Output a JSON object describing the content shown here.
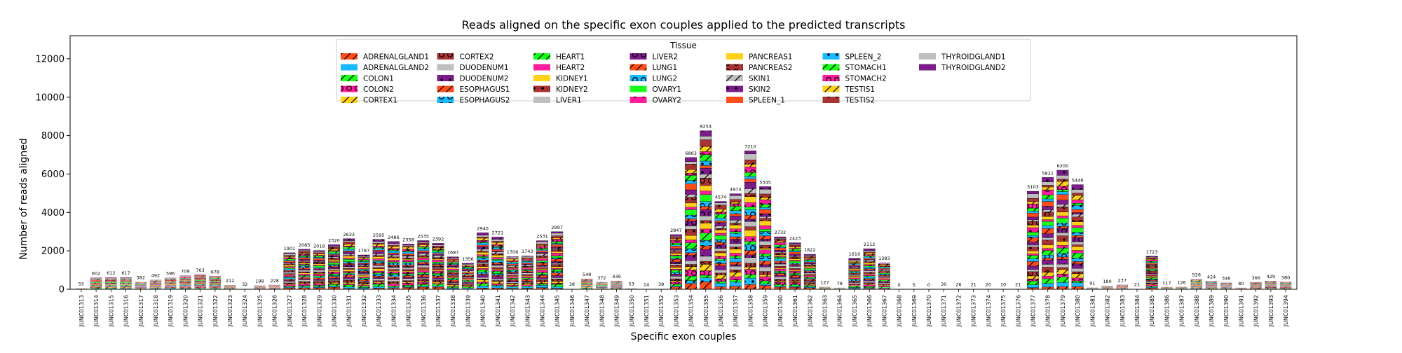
{
  "chart_data": {
    "type": "bar",
    "stacked": true,
    "title": "Reads aligned on the specific exon couples applied to the predicted transcripts",
    "xlabel": "Specific exon couples",
    "ylabel": "Number of reads aligned",
    "ylim": [
      0,
      13200
    ],
    "yticks": [
      0,
      2000,
      4000,
      6000,
      8000,
      10000,
      12000
    ],
    "grid": false,
    "legend": {
      "title": "Tissue",
      "placement": "top-center",
      "columns": 7
    },
    "categories": [
      "JUNC01313",
      "JUNC01314",
      "JUNC01315",
      "JUNC01316",
      "JUNC01317",
      "JUNC01318",
      "JUNC01319",
      "JUNC01320",
      "JUNC01321",
      "JUNC01322",
      "JUNC01323",
      "JUNC01324",
      "JUNC01325",
      "JUNC01326",
      "JUNC01327",
      "JUNC01328",
      "JUNC01329",
      "JUNC01330",
      "JUNC01331",
      "JUNC01332",
      "JUNC01333",
      "JUNC01334",
      "JUNC01335",
      "JUNC01336",
      "JUNC01337",
      "JUNC01338",
      "JUNC01339",
      "JUNC01340",
      "JUNC01341",
      "JUNC01342",
      "JUNC01343",
      "JUNC01344",
      "JUNC01345",
      "JUNC01346",
      "JUNC01347",
      "JUNC01348",
      "JUNC01349",
      "JUNC01350",
      "JUNC01351",
      "JUNC01352",
      "JUNC01353",
      "JUNC01354",
      "JUNC01355",
      "JUNC01356",
      "JUNC01357",
      "JUNC01358",
      "JUNC01359",
      "JUNC01360",
      "JUNC01361",
      "JUNC01362",
      "JUNC01363",
      "JUNC01364",
      "JUNC01365",
      "JUNC01366",
      "JUNC01367",
      "JUNC01368",
      "JUNC01369",
      "JUNC01370",
      "JUNC01371",
      "JUNC01372",
      "JUNC01373",
      "JUNC01374",
      "JUNC01375",
      "JUNC01376",
      "JUNC01377",
      "JUNC01378",
      "JUNC01379",
      "JUNC01380",
      "JUNC01381",
      "JUNC01382",
      "JUNC01383",
      "JUNC01384",
      "JUNC01385",
      "JUNC01386",
      "JUNC01387",
      "JUNC01388",
      "JUNC01389",
      "JUNC01390",
      "JUNC01391",
      "JUNC01392",
      "JUNC01393",
      "JUNC01394"
    ],
    "totals": [
      55,
      602,
      612,
      617,
      382,
      492,
      596,
      709,
      763,
      678,
      212,
      32,
      198,
      228,
      1901,
      2085,
      2018,
      2320,
      2633,
      1787,
      2595,
      2486,
      2358,
      2535,
      2392,
      1687,
      1356,
      2940,
      2721,
      1706,
      1743,
      2531,
      2997,
      38,
      548,
      372,
      439,
      53,
      14,
      38,
      2847,
      6863,
      8254,
      4574,
      4974,
      7210,
      5345,
      2732,
      2423,
      1822,
      127,
      78,
      1610,
      2112,
      1383,
      0,
      5,
      0,
      30,
      26,
      21,
      20,
      10,
      21,
      5103,
      5821,
      6200,
      5448,
      91,
      180,
      237,
      21,
      1723,
      117,
      126,
      526,
      424,
      346,
      80,
      366,
      429,
      380
    ],
    "series": [
      {
        "name": "ADRENALGLAND1",
        "color": "#ff4d1a",
        "pattern": "diag"
      },
      {
        "name": "ADRENALGLAND2",
        "color": "#1ab8ff",
        "pattern": "dots"
      },
      {
        "name": "COLON1",
        "color": "#1aff1a",
        "pattern": "diag"
      },
      {
        "name": "COLON2",
        "color": "#ff1a9e",
        "pattern": "rings"
      },
      {
        "name": "CORTEX1",
        "color": "#ffd11a",
        "pattern": "diag"
      },
      {
        "name": "CORTEX2",
        "color": "#a83232",
        "pattern": "rings"
      },
      {
        "name": "DUODENUM1",
        "color": "#bfbfbf",
        "pattern": "none"
      },
      {
        "name": "DUODENUM2",
        "color": "#7d1a8c",
        "pattern": "dots"
      },
      {
        "name": "ESOPHAGUS1",
        "color": "#ff4d1a",
        "pattern": "diag"
      },
      {
        "name": "ESOPHAGUS2",
        "color": "#1ab8ff",
        "pattern": "rings"
      },
      {
        "name": "HEART1",
        "color": "#1aff1a",
        "pattern": "diag"
      },
      {
        "name": "HEART2",
        "color": "#ff1a9e",
        "pattern": "dots"
      },
      {
        "name": "KIDNEY1",
        "color": "#ffd11a",
        "pattern": "none"
      },
      {
        "name": "KIDNEY2",
        "color": "#a83232",
        "pattern": "dots"
      },
      {
        "name": "LIVER1",
        "color": "#bfbfbf",
        "pattern": "none"
      },
      {
        "name": "LIVER2",
        "color": "#7d1a8c",
        "pattern": "rings"
      },
      {
        "name": "LUNG1",
        "color": "#ff4d1a",
        "pattern": "diag"
      },
      {
        "name": "LUNG2",
        "color": "#1ab8ff",
        "pattern": "rings"
      },
      {
        "name": "OVARY1",
        "color": "#1aff1a",
        "pattern": "none"
      },
      {
        "name": "OVARY2",
        "color": "#ff1a9e",
        "pattern": "dots"
      },
      {
        "name": "PANCREAS1",
        "color": "#ffd11a",
        "pattern": "none"
      },
      {
        "name": "PANCREAS2",
        "color": "#a83232",
        "pattern": "rings"
      },
      {
        "name": "SKIN1",
        "color": "#bfbfbf",
        "pattern": "diag"
      },
      {
        "name": "SKIN2",
        "color": "#7d1a8c",
        "pattern": "dots"
      },
      {
        "name": "SPLEEN_1",
        "color": "#ff4d1a",
        "pattern": "none"
      },
      {
        "name": "SPLEEN_2",
        "color": "#1ab8ff",
        "pattern": "dots"
      },
      {
        "name": "STOMACH1",
        "color": "#1aff1a",
        "pattern": "diag"
      },
      {
        "name": "STOMACH2",
        "color": "#ff1a9e",
        "pattern": "rings"
      },
      {
        "name": "TESTIS1",
        "color": "#ffd11a",
        "pattern": "diag"
      },
      {
        "name": "TESTIS2",
        "color": "#a83232",
        "pattern": "dots"
      },
      {
        "name": "THYROIDGLAND1",
        "color": "#bfbfbf",
        "pattern": "none"
      },
      {
        "name": "THYROIDGLAND2",
        "color": "#7d1a8c",
        "pattern": "dots"
      }
    ]
  }
}
